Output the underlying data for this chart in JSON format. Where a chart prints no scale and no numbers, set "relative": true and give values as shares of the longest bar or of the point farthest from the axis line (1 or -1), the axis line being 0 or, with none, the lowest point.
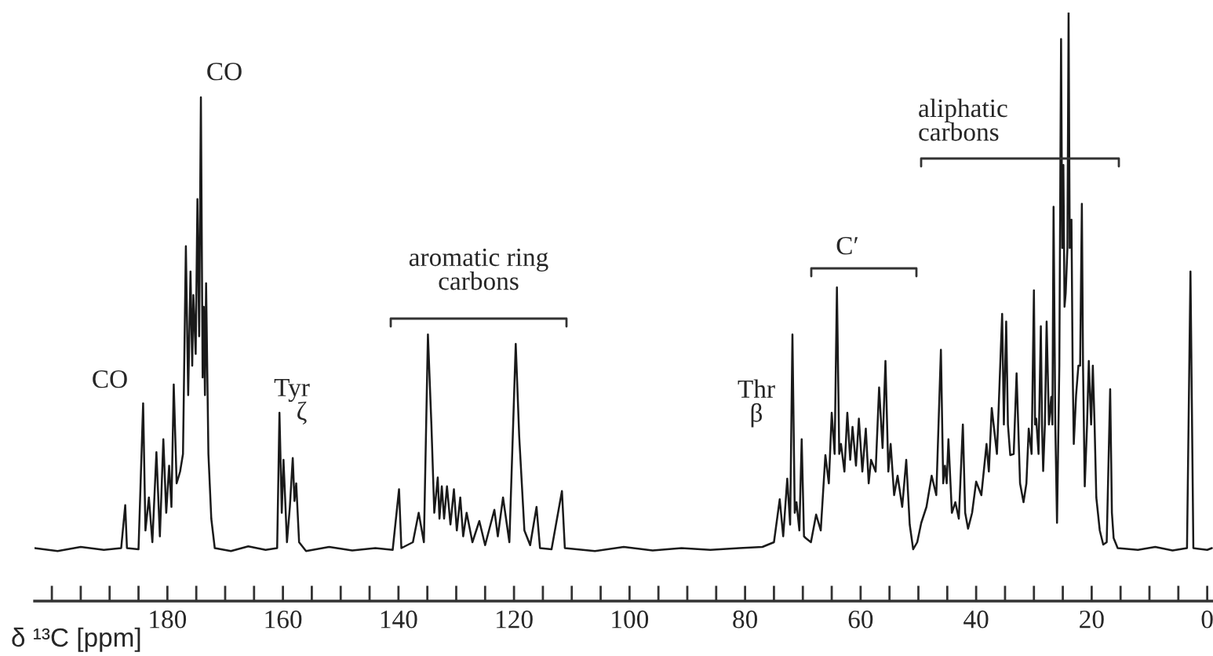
{
  "chart_data": {
    "type": "line",
    "relative": true,
    "xlabel": "δ ¹³C [ppm]",
    "xlim": [
      203,
      -1
    ],
    "xticks": [
      {
        "value": 200,
        "label": null
      },
      {
        "value": 195,
        "label": null
      },
      {
        "value": 190,
        "label": null
      },
      {
        "value": 185,
        "label": null
      },
      180,
      {
        "value": 175,
        "label": null
      },
      {
        "value": 170,
        "label": null
      },
      {
        "value": 165,
        "label": null
      },
      160,
      {
        "value": 155,
        "label": null
      },
      {
        "value": 150,
        "label": null
      },
      {
        "value": 145,
        "label": null
      },
      140,
      {
        "value": 135,
        "label": null
      },
      {
        "value": 130,
        "label": null
      },
      {
        "value": 125,
        "label": null
      },
      120,
      {
        "value": 115,
        "label": null
      },
      {
        "value": 110,
        "label": null
      },
      {
        "value": 105,
        "label": null
      },
      100,
      {
        "value": 95,
        "label": null
      },
      {
        "value": 90,
        "label": null
      },
      {
        "value": 85,
        "label": null
      },
      80,
      {
        "value": 75,
        "label": null
      },
      {
        "value": 70,
        "label": null
      },
      {
        "value": 65,
        "label": null
      },
      60,
      {
        "value": 55,
        "label": null
      },
      {
        "value": 50,
        "label": null
      },
      {
        "value": 45,
        "label": null
      },
      40,
      {
        "value": 35,
        "label": null
      },
      {
        "value": 30,
        "label": null
      },
      {
        "value": 25,
        "label": null
      },
      20,
      {
        "value": 15,
        "label": null
      },
      {
        "value": 10,
        "label": null
      },
      {
        "value": 5,
        "label": null
      },
      0
    ],
    "grid": false,
    "legend": false,
    "tick_labels": "x",
    "series": [
      {
        "color": "#1a1a1a",
        "x": [
          203,
          199,
          195,
          191,
          188,
          187.3,
          187,
          185,
          184.2,
          183.8,
          183.2,
          182.6,
          181.9,
          181.3,
          180.7,
          180.2,
          179.7,
          179.3,
          178.9,
          178.4,
          177.8,
          177.3,
          176.8,
          176.4,
          176.0,
          175.7,
          175.5,
          175.1,
          174.8,
          174.5,
          174.2,
          173.9,
          173.7,
          173.5,
          173.3,
          172.9,
          172.4,
          171.8,
          169,
          166,
          163,
          161,
          160.6,
          160.2,
          159.9,
          159.3,
          158.8,
          158.3,
          158.0,
          157.7,
          157.2,
          156,
          152,
          148,
          144,
          141,
          139.9,
          139.5,
          137.5,
          136.5,
          135.6,
          134.9,
          134.3,
          133.8,
          133.2,
          132.9,
          132.5,
          132.1,
          131.6,
          131.0,
          130.4,
          129.9,
          129.3,
          128.8,
          128.2,
          127.2,
          126.0,
          125.0,
          123.4,
          122.8,
          121.9,
          120.8,
          119.7,
          119.1,
          118.2,
          117.2,
          116.1,
          115.5,
          113.5,
          111.7,
          111.2,
          106,
          101,
          96,
          91,
          86,
          81,
          77,
          75,
          74.0,
          73.4,
          72.7,
          72.2,
          71.8,
          71.4,
          71.1,
          70.6,
          70.2,
          69.8,
          69.5,
          68.6,
          67.7,
          66.9,
          66.1,
          65.5,
          65.0,
          64.5,
          64.1,
          63.7,
          63.4,
          62.8,
          62.3,
          61.8,
          61.4,
          60.8,
          60.3,
          59.7,
          59.1,
          58.6,
          58.2,
          57.4,
          56.8,
          56.2,
          55.7,
          55.2,
          54.8,
          54.2,
          53.6,
          52.8,
          52.1,
          51.5,
          50.9,
          50.2,
          49.5,
          48.6,
          47.7,
          46.9,
          46.1,
          45.7,
          45.4,
          45.1,
          44.8,
          44.2,
          43.6,
          43.0,
          42.3,
          41.9,
          41.4,
          40.7,
          40.0,
          39.1,
          38.2,
          37.8,
          37.3,
          36.4,
          35.5,
          35.2,
          34.8,
          34.5,
          34.1,
          33.5,
          33.0,
          32.4,
          31.8,
          31.3,
          30.9,
          30.4,
          30.0,
          29.8,
          29.6,
          29.2,
          28.8,
          28.6,
          28.4,
          28.1,
          27.8,
          27.4,
          27.0,
          26.8,
          26.6,
          26.3,
          26.0,
          25.6,
          25.3,
          25.1,
          24.9,
          24.7,
          24.5,
          24.2,
          24.0,
          23.8,
          23.5,
          23.3,
          23.1,
          22.7,
          22.3,
          22.0,
          21.7,
          21.5,
          21.2,
          20.8,
          20.5,
          20.1,
          19.8,
          19.5,
          19.2,
          18.6,
          18.0,
          17.4,
          16.8,
          16.5,
          16.2,
          15.5,
          12,
          9,
          6,
          3.5,
          2.9,
          2.4,
          0,
          -0.8
        ],
        "values": [
          0.09,
          0.085,
          0.092,
          0.087,
          0.09,
          0.163,
          0.09,
          0.088,
          0.336,
          0.12,
          0.176,
          0.1,
          0.253,
          0.11,
          0.275,
          0.15,
          0.23,
          0.16,
          0.368,
          0.2,
          0.22,
          0.25,
          0.603,
          0.35,
          0.56,
          0.4,
          0.52,
          0.42,
          0.683,
          0.45,
          0.856,
          0.38,
          0.5,
          0.35,
          0.54,
          0.25,
          0.14,
          0.09,
          0.085,
          0.093,
          0.087,
          0.09,
          0.32,
          0.15,
          0.24,
          0.1,
          0.16,
          0.243,
          0.17,
          0.2,
          0.1,
          0.085,
          0.092,
          0.086,
          0.09,
          0.087,
          0.19,
          0.09,
          0.1,
          0.15,
          0.1,
          0.453,
          0.3,
          0.15,
          0.21,
          0.14,
          0.195,
          0.14,
          0.195,
          0.13,
          0.19,
          0.12,
          0.176,
          0.11,
          0.15,
          0.1,
          0.136,
          0.095,
          0.155,
          0.11,
          0.176,
          0.1,
          0.437,
          0.28,
          0.12,
          0.095,
          0.16,
          0.09,
          0.088,
          0.187,
          0.09,
          0.085,
          0.092,
          0.086,
          0.09,
          0.087,
          0.09,
          0.092,
          0.1,
          0.173,
          0.11,
          0.208,
          0.13,
          0.453,
          0.15,
          0.168,
          0.12,
          0.275,
          0.11,
          0.107,
          0.1,
          0.147,
          0.12,
          0.248,
          0.2,
          0.32,
          0.25,
          0.533,
          0.25,
          0.267,
          0.22,
          0.32,
          0.24,
          0.296,
          0.23,
          0.31,
          0.22,
          0.293,
          0.2,
          0.24,
          0.22,
          0.363,
          0.26,
          0.408,
          0.22,
          0.267,
          0.18,
          0.213,
          0.16,
          0.24,
          0.13,
          0.088,
          0.1,
          0.133,
          0.16,
          0.213,
          0.18,
          0.427,
          0.2,
          0.23,
          0.2,
          0.275,
          0.15,
          0.168,
          0.14,
          0.3,
          0.15,
          0.123,
          0.15,
          0.203,
          0.18,
          0.267,
          0.22,
          0.328,
          0.25,
          0.488,
          0.3,
          0.475,
          0.3,
          0.248,
          0.25,
          0.387,
          0.2,
          0.168,
          0.2,
          0.293,
          0.25,
          0.528,
          0.3,
          0.31,
          0.25,
          0.467,
          0.3,
          0.221,
          0.3,
          0.475,
          0.3,
          0.347,
          0.3,
          0.67,
          0.3,
          0.133,
          0.4,
          0.955,
          0.6,
          0.741,
          0.5,
          0.523,
          0.6,
          1.0,
          0.6,
          0.648,
          0.4,
          0.267,
          0.35,
          0.4,
          0.4,
          0.675,
          0.4,
          0.195,
          0.3,
          0.408,
          0.3,
          0.4,
          0.3,
          0.176,
          0.12,
          0.096,
          0.1,
          0.36,
          0.15,
          0.107,
          0.09,
          0.087,
          0.092,
          0.086,
          0.09,
          0.56,
          0.09,
          0.087,
          0.09
        ]
      }
    ],
    "annotations": [
      "CO",
      "CO",
      "Tyr\n   ζ",
      "aromatic ring\ncarbons",
      "Thr\nβ",
      "C′",
      "aliphatic\ncarbons"
    ]
  }
}
